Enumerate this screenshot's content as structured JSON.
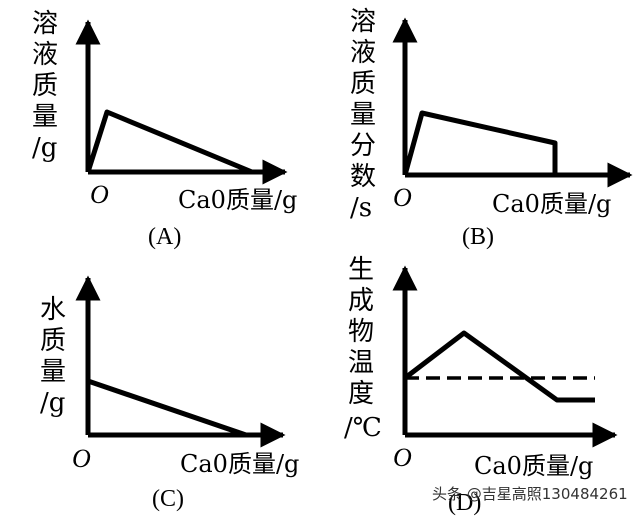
{
  "panels": [
    {
      "y_label_chars": [
        "溶",
        "液",
        "质",
        "量",
        "/g"
      ],
      "origin": "O",
      "x_label": "Ca0质量/g",
      "caption": "(A)"
    },
    {
      "y_label_chars": [
        "溶",
        "液",
        "质",
        "量",
        "分",
        "数",
        "/s"
      ],
      "origin": "O",
      "x_label": "Ca0质量/g",
      "caption": "(B)"
    },
    {
      "y_label_chars": [
        "水",
        "质",
        "量",
        "/g"
      ],
      "origin": "O",
      "x_label": "Ca0质量/g",
      "caption": "(C)"
    },
    {
      "y_label_chars": [
        "生",
        "成",
        "物",
        "温",
        "度",
        "/℃"
      ],
      "origin": "O",
      "x_label": "Ca0质量/g",
      "caption": "(D)"
    }
  ],
  "watermark": "头条 @吉星高照130484261"
}
